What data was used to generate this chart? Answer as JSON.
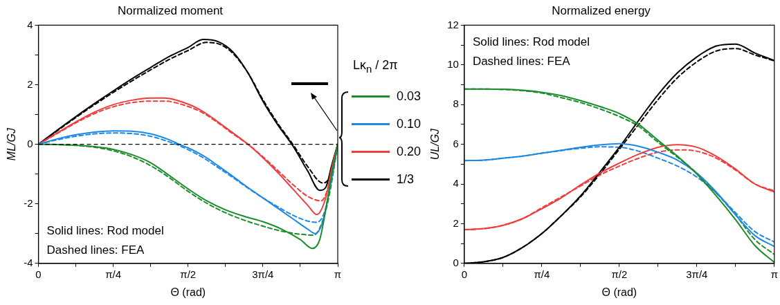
{
  "chart_data": [
    {
      "type": "line",
      "title": "Normalized moment",
      "xlabel": "Θ (rad)",
      "ylabel": "ML/GJ",
      "legend_title": "Lκ$_{n}$ / 2π",
      "legend": "right",
      "grid": false,
      "xlim": [
        0,
        3.142
      ],
      "xticks": [
        {
          "value": 0,
          "label": "0"
        },
        {
          "value": 0.3927,
          "label": null
        },
        {
          "value": 0.7854,
          "label": "π/4"
        },
        {
          "value": 1.1781,
          "label": null
        },
        {
          "value": 1.5708,
          "label": "π/2"
        },
        {
          "value": 1.9635,
          "label": null
        },
        {
          "value": 2.3562,
          "label": "3π/4"
        },
        {
          "value": 2.7489,
          "label": null
        },
        {
          "value": 3.142,
          "label": "π"
        }
      ],
      "ylim": [
        -4,
        4
      ],
      "yticks": [
        -4,
        {
          "value": -3,
          "label": null
        },
        -2,
        {
          "value": -1,
          "label": null
        },
        0,
        {
          "value": 1,
          "label": null
        },
        2,
        {
          "value": 3,
          "label": null
        },
        4
      ],
      "ref_lines": [
        {
          "axis": "y",
          "value": 0,
          "color": "#000000",
          "line_style": "dashed"
        }
      ],
      "annotations": [
        "Solid lines: Rod model",
        "Dashed lines: FEA"
      ],
      "series": [
        {
          "name": "0.03",
          "color": "#1a8c2a",
          "x": [
            0,
            0.196,
            0.393,
            0.589,
            0.785,
            0.982,
            1.178,
            1.374,
            1.571,
            1.767,
            1.963,
            2.16,
            2.356,
            2.553,
            2.749,
            2.875,
            2.953,
            3.016,
            3.079,
            3.142
          ],
          "values": [
            0,
            -0.01,
            -0.03,
            -0.08,
            -0.17,
            -0.35,
            -0.62,
            -1.05,
            -1.5,
            -1.9,
            -2.2,
            -2.42,
            -2.6,
            -2.85,
            -3.2,
            -3.5,
            -3.2,
            -2.2,
            -1.0,
            0
          ]
        },
        {
          "name": "0.10",
          "color": "#1e88e5",
          "x": [
            0,
            0.196,
            0.393,
            0.589,
            0.785,
            0.982,
            1.178,
            1.374,
            1.477,
            1.571,
            1.728,
            1.885,
            2.042,
            2.199,
            2.356,
            2.513,
            2.67,
            2.827,
            2.906,
            2.985,
            3.063,
            3.142
          ],
          "values": [
            0,
            0.18,
            0.32,
            0.41,
            0.45,
            0.44,
            0.35,
            0.15,
            0,
            -0.12,
            -0.38,
            -0.72,
            -1.08,
            -1.45,
            -1.8,
            -2.15,
            -2.5,
            -2.85,
            -3.0,
            -2.6,
            -1.4,
            0
          ]
        },
        {
          "name": "0.20",
          "color": "#f03c3c",
          "x": [
            0,
            0.196,
            0.393,
            0.589,
            0.785,
            0.982,
            1.178,
            1.319,
            1.571,
            1.728,
            1.885,
            2.042,
            2.199,
            2.356,
            2.513,
            2.67,
            2.827,
            2.922,
            3.016,
            3.079,
            3.142
          ],
          "values": [
            0,
            0.38,
            0.75,
            1.08,
            1.33,
            1.48,
            1.55,
            1.55,
            1.35,
            1.1,
            0.75,
            0.38,
            0,
            -0.45,
            -0.95,
            -1.5,
            -2.05,
            -2.36,
            -1.8,
            -0.8,
            0
          ]
        },
        {
          "name": "1/3",
          "color": "#000000",
          "x": [
            0,
            0.196,
            0.393,
            0.589,
            0.785,
            0.982,
            1.178,
            1.374,
            1.571,
            1.728,
            1.885,
            2.042,
            2.199,
            2.356,
            2.513,
            2.67,
            2.827,
            2.953,
            3.016,
            3.079,
            3.142
          ],
          "values": [
            0,
            0.47,
            0.93,
            1.37,
            1.79,
            2.2,
            2.58,
            2.95,
            3.25,
            3.52,
            3.45,
            3.1,
            2.4,
            1.45,
            0.65,
            -0.05,
            -0.9,
            -1.55,
            -1.45,
            -0.7,
            0
          ]
        },
        {
          "color": "#1a8c2a",
          "line_style": "dashed",
          "x": [
            0,
            0.196,
            0.393,
            0.589,
            0.785,
            0.982,
            1.178,
            1.374,
            1.571,
            1.767,
            1.963,
            2.16,
            2.356,
            2.553,
            2.749,
            2.89,
            2.969,
            3.047,
            3.142
          ],
          "values": [
            0,
            -0.01,
            -0.04,
            -0.1,
            -0.22,
            -0.42,
            -0.72,
            -1.12,
            -1.58,
            -1.98,
            -2.3,
            -2.55,
            -2.75,
            -2.92,
            -3.02,
            -3.05,
            -2.7,
            -1.8,
            0
          ]
        },
        {
          "color": "#1e88e5",
          "line_style": "dashed",
          "x": [
            0,
            0.196,
            0.393,
            0.589,
            0.785,
            0.982,
            1.178,
            1.374,
            1.445,
            1.571,
            1.728,
            1.885,
            2.042,
            2.199,
            2.356,
            2.513,
            2.67,
            2.827,
            2.922,
            3.0,
            3.079,
            3.142
          ],
          "values": [
            0,
            0.15,
            0.27,
            0.35,
            0.38,
            0.36,
            0.27,
            0.08,
            0,
            -0.18,
            -0.45,
            -0.78,
            -1.12,
            -1.47,
            -1.8,
            -2.1,
            -2.38,
            -2.58,
            -2.62,
            -2.3,
            -1.2,
            0
          ]
        },
        {
          "color": "#f03c3c",
          "line_style": "dashed",
          "x": [
            0,
            0.196,
            0.393,
            0.589,
            0.785,
            0.982,
            1.178,
            1.319,
            1.571,
            1.728,
            1.885,
            2.042,
            2.199,
            2.356,
            2.513,
            2.67,
            2.827,
            2.969,
            3.047,
            3.11,
            3.142
          ],
          "values": [
            0,
            0.36,
            0.72,
            1.03,
            1.26,
            1.4,
            1.45,
            1.45,
            1.27,
            1.05,
            0.72,
            0.35,
            0,
            -0.42,
            -0.88,
            -1.35,
            -1.75,
            -1.9,
            -1.4,
            -0.5,
            0
          ]
        },
        {
          "color": "#000000",
          "line_style": "dashed",
          "x": [
            0,
            0.196,
            0.393,
            0.589,
            0.785,
            0.982,
            1.178,
            1.374,
            1.571,
            1.759,
            1.885,
            2.042,
            2.199,
            2.356,
            2.513,
            2.67,
            2.827,
            2.985,
            3.047,
            3.11,
            3.142
          ],
          "values": [
            0,
            0.45,
            0.9,
            1.33,
            1.74,
            2.13,
            2.5,
            2.85,
            3.15,
            3.42,
            3.38,
            3.05,
            2.4,
            1.5,
            0.7,
            0,
            -0.75,
            -1.3,
            -1.15,
            -0.4,
            0
          ]
        }
      ]
    },
    {
      "type": "line",
      "title": "Normalized energy",
      "xlabel": "Θ (rad)",
      "ylabel": "UL/GJ",
      "grid": false,
      "xlim": [
        0,
        3.142
      ],
      "xticks": [
        {
          "value": 0,
          "label": "0"
        },
        {
          "value": 0.3927,
          "label": null
        },
        {
          "value": 0.7854,
          "label": "π/4"
        },
        {
          "value": 1.1781,
          "label": null
        },
        {
          "value": 1.5708,
          "label": "π/2"
        },
        {
          "value": 1.9635,
          "label": null
        },
        {
          "value": 2.3562,
          "label": "3π/4"
        },
        {
          "value": 2.7489,
          "label": null
        },
        {
          "value": 3.142,
          "label": "π"
        }
      ],
      "ylim": [
        0,
        12
      ],
      "yticks": [
        0,
        {
          "value": 1,
          "label": null
        },
        2,
        {
          "value": 3,
          "label": null
        },
        4,
        {
          "value": 5,
          "label": null
        },
        6,
        {
          "value": 7,
          "label": null
        },
        8,
        {
          "value": 9,
          "label": null
        },
        10,
        {
          "value": 11,
          "label": null
        },
        12
      ],
      "annotations": [
        "Solid lines: Rod model",
        "Dashed lines: FEA"
      ],
      "x": [
        0,
        0.196,
        0.393,
        0.589,
        0.785,
        0.982,
        1.178,
        1.374,
        1.571,
        1.767,
        1.963,
        2.16,
        2.356,
        2.553,
        2.749,
        2.945,
        3.142
      ],
      "series": [
        {
          "color": "#1a8c2a",
          "values": [
            8.78,
            8.78,
            8.77,
            8.72,
            8.62,
            8.45,
            8.2,
            7.9,
            7.55,
            7.0,
            6.2,
            5.4,
            4.5,
            3.4,
            2.2,
            0.9,
            0.05
          ]
        },
        {
          "color": "#1e88e5",
          "values": [
            5.18,
            5.2,
            5.3,
            5.4,
            5.55,
            5.7,
            5.85,
            5.97,
            6.03,
            5.9,
            5.6,
            5.2,
            4.55,
            3.6,
            2.45,
            1.4,
            0.85
          ]
        },
        {
          "color": "#f03c3c",
          "values": [
            1.7,
            1.75,
            1.92,
            2.25,
            2.75,
            3.3,
            3.95,
            4.55,
            5.05,
            5.5,
            5.85,
            5.98,
            5.85,
            5.4,
            4.75,
            4.0,
            3.6
          ]
        },
        {
          "color": "#000000",
          "values": [
            0,
            0.08,
            0.3,
            0.8,
            1.5,
            2.4,
            3.4,
            4.6,
            5.85,
            7.2,
            8.5,
            9.6,
            10.4,
            10.95,
            11.05,
            10.6,
            10.22
          ]
        },
        {
          "color": "#1a8c2a",
          "line_style": "dashed",
          "values": [
            8.78,
            8.78,
            8.76,
            8.7,
            8.58,
            8.35,
            8.1,
            7.78,
            7.4,
            6.9,
            6.1,
            5.35,
            4.55,
            3.55,
            2.45,
            1.2,
            0.45
          ]
        },
        {
          "color": "#1e88e5",
          "line_style": "dashed",
          "values": [
            5.18,
            5.2,
            5.3,
            5.4,
            5.55,
            5.68,
            5.8,
            5.87,
            5.85,
            5.65,
            5.3,
            4.9,
            4.35,
            3.55,
            2.55,
            1.6,
            1.08
          ]
        },
        {
          "color": "#f03c3c",
          "line_style": "dashed",
          "values": [
            1.7,
            1.75,
            1.92,
            2.25,
            2.8,
            3.35,
            3.9,
            4.45,
            4.9,
            5.3,
            5.6,
            5.72,
            5.65,
            5.3,
            4.7,
            4.0,
            3.65
          ]
        },
        {
          "color": "#000000",
          "line_style": "dashed",
          "values": [
            0,
            0.08,
            0.3,
            0.8,
            1.5,
            2.4,
            3.35,
            4.5,
            5.75,
            7.0,
            8.25,
            9.35,
            10.15,
            10.7,
            10.82,
            10.5,
            10.2
          ]
        }
      ]
    }
  ]
}
